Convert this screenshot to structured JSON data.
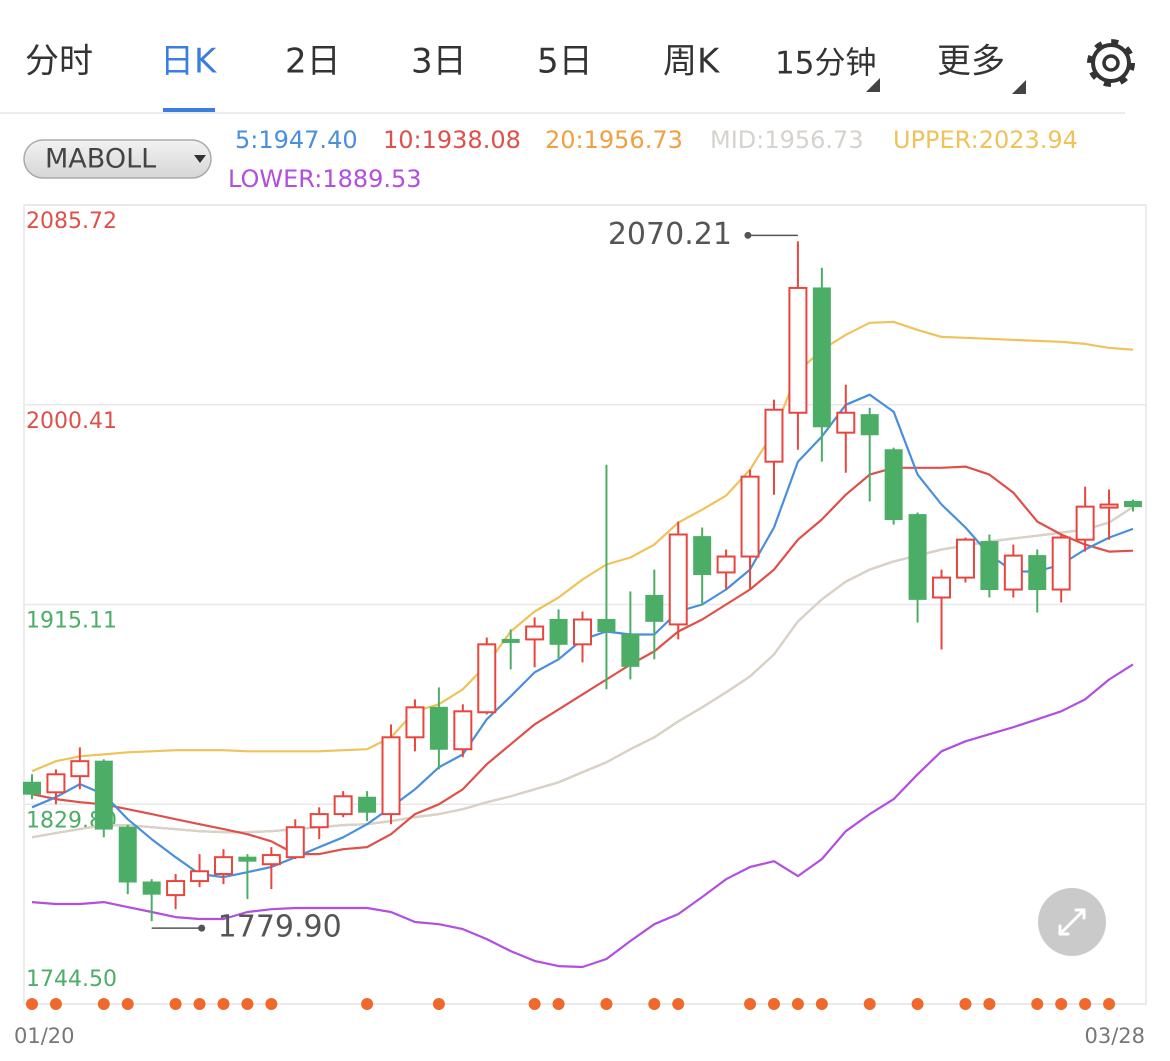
{
  "tabs": [
    {
      "label": "分时",
      "active": false
    },
    {
      "label": "日K",
      "active": true
    },
    {
      "label": "2日",
      "active": false
    },
    {
      "label": "3日",
      "active": false
    },
    {
      "label": "5日",
      "active": false
    },
    {
      "label": "周K",
      "active": false
    },
    {
      "label": "15分钟",
      "active": false
    },
    {
      "label": "更多",
      "active": false
    }
  ],
  "indicator_selector": "MABOLL",
  "chart_data": {
    "type": "candlestick",
    "categories": [
      "01/20",
      null,
      null,
      null,
      null,
      null,
      null,
      null,
      null,
      null,
      null,
      null,
      null,
      null,
      null,
      null,
      null,
      null,
      null,
      null,
      null,
      null,
      null,
      null,
      null,
      null,
      null,
      null,
      null,
      null,
      null,
      null,
      null,
      null,
      null,
      null,
      null,
      null,
      null,
      null,
      null,
      null,
      null,
      null,
      null,
      null,
      "03/28"
    ],
    "open": [
      1839.2,
      1834.9,
      1841.8,
      1848.2,
      1820.0,
      1796.6,
      1791.0,
      1797.0,
      1800.0,
      1807.2,
      1804.2,
      1807.2,
      1820.0,
      1825.6,
      1832.8,
      1825.6,
      1858.4,
      1871.2,
      1853.3,
      1869.1,
      1900.2,
      1900.2,
      1908.7,
      1898.1,
      1908.7,
      1902.3,
      1919.0,
      1906.6,
      1944.1,
      1928.8,
      1935.6,
      1976.1,
      1997.0,
      2050.3,
      1988.5,
      1996.2,
      1981.2,
      1953.5,
      1918.1,
      1926.6,
      1942.0,
      1921.5,
      1936.0,
      1921.5,
      1942.8,
      1956.5,
      1959.1
    ],
    "high": [
      1842.6,
      1844.7,
      1854.1,
      1849.0,
      1821.0,
      1797.8,
      1800.0,
      1808.5,
      1810.6,
      1808.5,
      1811.5,
      1823.4,
      1828.5,
      1835.4,
      1835.4,
      1863.9,
      1874.6,
      1879.7,
      1872.5,
      1901.0,
      1904.5,
      1909.6,
      1913.0,
      1912.1,
      1974.8,
      1920.7,
      1930.0,
      1950.5,
      1948.0,
      1938.6,
      1972.7,
      2002.6,
      2070.21,
      2058.9,
      2009.0,
      1999.1,
      1982.1,
      1954.4,
      1930.0,
      1943.7,
      1945.0,
      1940.7,
      1938.6,
      1945.0,
      1965.4,
      1964.2,
      1959.9
    ],
    "low": [
      1832.0,
      1829.8,
      1836.2,
      1815.7,
      1791.4,
      1779.9,
      1785.0,
      1794.4,
      1795.7,
      1789.3,
      1793.6,
      1806.4,
      1814.9,
      1824.3,
      1822.6,
      1821.3,
      1852.4,
      1844.7,
      1849.9,
      1868.2,
      1887.4,
      1888.3,
      1891.7,
      1890.4,
      1878.9,
      1883.1,
      1891.7,
      1900.2,
      1914.7,
      1921.5,
      1921.5,
      1962.0,
      1981.2,
      1976.1,
      1971.4,
      1959.1,
      1949.2,
      1907.4,
      1895.9,
      1924.5,
      1918.1,
      1918.1,
      1911.7,
      1916.0,
      1937.7,
      1942.8,
      1954.8
    ],
    "close": [
      1834.1,
      1842.6,
      1848.2,
      1819.2,
      1796.6,
      1791.4,
      1797.0,
      1801.2,
      1807.2,
      1805.5,
      1808.1,
      1820.0,
      1825.6,
      1833.2,
      1826.4,
      1858.4,
      1871.2,
      1853.3,
      1869.5,
      1898.1,
      1898.9,
      1905.7,
      1898.1,
      1908.7,
      1903.6,
      1888.7,
      1907.9,
      1945.0,
      1927.9,
      1935.6,
      1969.7,
      1998.3,
      2050.3,
      1991.0,
      1997.0,
      1987.6,
      1951.4,
      1917.3,
      1926.6,
      1942.8,
      1921.5,
      1936.0,
      1921.5,
      1943.7,
      1956.9,
      1957.8,
      1956.9
    ],
    "up_color": "#e8453e",
    "down_color": "#4cae66",
    "series": [
      {
        "name": "5:1947.40",
        "color": "#4a8fdc",
        "values": [
          1828.5,
          1832.8,
          1838.4,
          1834.1,
          1823.4,
          1814.9,
          1807.2,
          1800.0,
          1798.7,
          1800.8,
          1803.0,
          1807.2,
          1811.5,
          1815.7,
          1821.3,
          1828.5,
          1836.2,
          1845.6,
          1851.1,
          1866.1,
          1875.9,
          1886.1,
          1891.7,
          1900.2,
          1903.6,
          1902.3,
          1902.3,
          1912.1,
          1915.1,
          1921.5,
          1930.0,
          1948.0,
          1976.1,
          1986.8,
          2000.4,
          2004.7,
          1997.4,
          1970.6,
          1957.8,
          1948.0,
          1936.4,
          1929.2,
          1929.2,
          1932.2,
          1938.6,
          1943.7,
          1947.4
        ]
      },
      {
        "name": "10:1938.08",
        "color": "#e0504a",
        "values": [
          1834.1,
          1832.0,
          1830.7,
          1829.8,
          1827.7,
          1825.6,
          1823.4,
          1821.3,
          1819.2,
          1817.0,
          1814.0,
          1808.5,
          1808.5,
          1810.6,
          1811.5,
          1817.0,
          1825.6,
          1829.8,
          1836.2,
          1846.9,
          1855.4,
          1863.9,
          1870.3,
          1876.7,
          1883.1,
          1889.5,
          1895.1,
          1903.6,
          1908.7,
          1915.1,
          1921.5,
          1930.0,
          1942.8,
          1951.4,
          1962.0,
          1970.6,
          1973.5,
          1973.5,
          1973.5,
          1974.0,
          1970.6,
          1962.9,
          1950.5,
          1945.0,
          1940.7,
          1937.7,
          1938.08
        ]
      },
      {
        "name": "20:1956.73",
        "color": "#f0a040",
        "values": [
          1815.7,
          1817.5,
          1819.2,
          1820.9,
          1820.9,
          1820.0,
          1819.2,
          1818.3,
          1817.9,
          1817.9,
          1818.3,
          1819.2,
          1820.0,
          1820.9,
          1821.3,
          1822.6,
          1824.3,
          1825.6,
          1827.7,
          1830.7,
          1833.2,
          1836.2,
          1839.2,
          1843.5,
          1847.7,
          1853.3,
          1858.4,
          1865.2,
          1871.2,
          1877.6,
          1884.4,
          1893.8,
          1907.9,
          1917.3,
          1924.9,
          1930.0,
          1933.5,
          1936.0,
          1938.6,
          1940.3,
          1942.0,
          1943.3,
          1944.5,
          1945.8,
          1947.1,
          1950.1,
          1956.73
        ]
      },
      {
        "name": "MID:1956.73",
        "color": "#d6d2cd",
        "values": [
          1815.7,
          1817.5,
          1819.2,
          1820.9,
          1820.9,
          1820.0,
          1819.2,
          1818.3,
          1817.9,
          1817.9,
          1818.3,
          1819.2,
          1820.0,
          1820.9,
          1821.3,
          1822.6,
          1824.3,
          1825.6,
          1827.7,
          1830.7,
          1833.2,
          1836.2,
          1839.2,
          1843.5,
          1847.7,
          1853.3,
          1858.4,
          1865.2,
          1871.2,
          1877.6,
          1884.4,
          1893.8,
          1907.9,
          1917.3,
          1924.9,
          1930.0,
          1933.5,
          1936.0,
          1938.6,
          1940.3,
          1942.0,
          1943.3,
          1944.5,
          1945.8,
          1947.1,
          1950.1,
          1956.73
        ]
      },
      {
        "name": "UPPER:2023.94",
        "color": "#efc35a",
        "values": [
          1843.9,
          1848.2,
          1850.3,
          1851.1,
          1852.0,
          1852.4,
          1852.9,
          1852.9,
          1852.9,
          1852.4,
          1852.4,
          1852.4,
          1852.4,
          1852.9,
          1853.3,
          1858.4,
          1869.5,
          1872.5,
          1878.9,
          1889.5,
          1903.6,
          1912.1,
          1918.1,
          1925.8,
          1932.2,
          1935.2,
          1940.7,
          1950.1,
          1955.6,
          1961.6,
          1972.7,
          1988.9,
          2014.5,
          2023.9,
          2030.3,
          2035.4,
          2035.8,
          2032.4,
          2029.4,
          2029.0,
          2028.6,
          2028.1,
          2027.7,
          2027.3,
          2026.4,
          2024.7,
          2023.94
        ]
      },
      {
        "name": "LOWER:1889.53",
        "color": "#b24ee0",
        "values": [
          1788.0,
          1787.2,
          1787.2,
          1788.0,
          1785.9,
          1783.8,
          1781.6,
          1780.8,
          1780.8,
          1783.8,
          1785.0,
          1785.5,
          1785.5,
          1785.5,
          1785.5,
          1783.8,
          1779.5,
          1778.6,
          1776.5,
          1772.2,
          1767.1,
          1762.9,
          1760.7,
          1760.3,
          1763.7,
          1771.4,
          1778.6,
          1782.9,
          1790.2,
          1797.8,
          1803.0,
          1805.5,
          1799.1,
          1806.4,
          1818.3,
          1825.6,
          1832.0,
          1842.6,
          1852.4,
          1856.7,
          1859.7,
          1862.7,
          1866.1,
          1869.5,
          1874.6,
          1883.1,
          1889.53
        ]
      }
    ],
    "ylim": [
      1744.5,
      2085.72
    ],
    "yticks": [
      {
        "value": 1744.5,
        "label": "1744.50"
      },
      1915.11,
      2000.41,
      2085.72,
      {
        "value": 1829.8,
        "label": "1829.80"
      }
    ],
    "ytick_colors": [
      "#4cae66",
      "#4cae66",
      "#e0504a",
      "#e0504a",
      "#4cae66"
    ],
    "grid": true,
    "annotations": [
      {
        "text": "2070.21"
      },
      {
        "text": "1779.90"
      }
    ],
    "event_markers": [
      0,
      1,
      3,
      4,
      6,
      7,
      8,
      9,
      10,
      14,
      17,
      21,
      22,
      24,
      26,
      27,
      30,
      31,
      32,
      33,
      35,
      37,
      39,
      40,
      42,
      43,
      44,
      45
    ],
    "event_color": "#f0692c"
  }
}
